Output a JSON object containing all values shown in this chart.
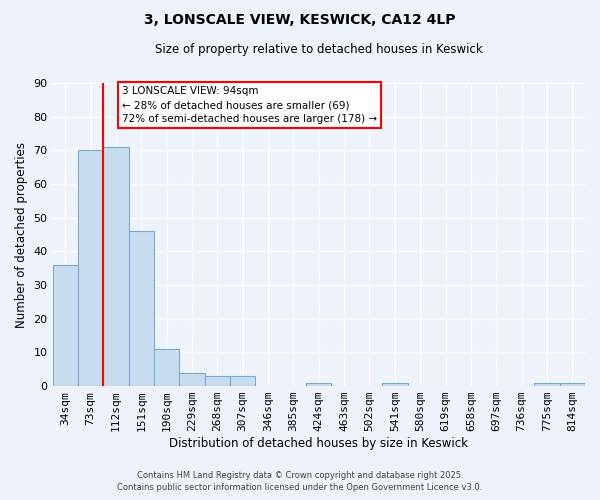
{
  "title": "3, LONSCALE VIEW, KESWICK, CA12 4LP",
  "subtitle": "Size of property relative to detached houses in Keswick",
  "xlabel": "Distribution of detached houses by size in Keswick",
  "ylabel": "Number of detached properties",
  "bar_color": "#c8dcf0",
  "bar_edge_color": "#7aaad0",
  "background_color": "#eef2fb",
  "grid_color": "#ffffff",
  "categories": [
    "34sqm",
    "73sqm",
    "112sqm",
    "151sqm",
    "190sqm",
    "229sqm",
    "268sqm",
    "307sqm",
    "346sqm",
    "385sqm",
    "424sqm",
    "463sqm",
    "502sqm",
    "541sqm",
    "580sqm",
    "619sqm",
    "658sqm",
    "697sqm",
    "736sqm",
    "775sqm",
    "814sqm"
  ],
  "values": [
    36,
    70,
    71,
    46,
    11,
    4,
    3,
    3,
    0,
    0,
    1,
    0,
    0,
    1,
    0,
    0,
    0,
    0,
    0,
    1,
    1
  ],
  "ylim": [
    0,
    90
  ],
  "yticks": [
    0,
    10,
    20,
    30,
    40,
    50,
    60,
    70,
    80,
    90
  ],
  "property_line_x": 1.5,
  "annotation_title": "3 LONSCALE VIEW: 94sqm",
  "annotation_line1": "← 28% of detached houses are smaller (69)",
  "annotation_line2": "72% of semi-detached houses are larger (178) →",
  "footer_line1": "Contains HM Land Registry data © Crown copyright and database right 2025.",
  "footer_line2": "Contains public sector information licensed under the Open Government Licence v3.0."
}
